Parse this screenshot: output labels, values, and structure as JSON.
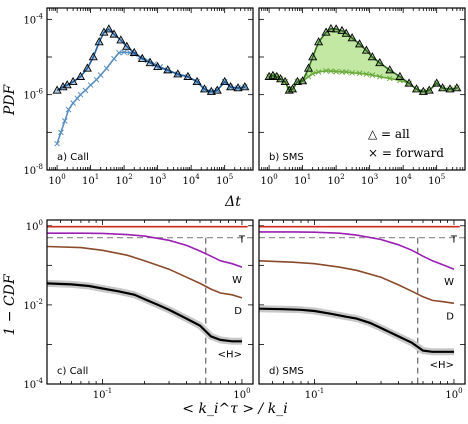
{
  "figure": {
    "top_ylabel": "PDF",
    "top_xlabel": "Δt",
    "bottom_ylabel": "1 − CDF",
    "bottom_xlabel": "< k_i^τ > / k_i",
    "legend": {
      "all": "△ = all",
      "forward": "× = forward"
    }
  },
  "chart_data": [
    {
      "type": "line",
      "panel_label": "a) Call",
      "xscale": "log",
      "yscale": "log",
      "xlim": [
        0.5,
        700000
      ],
      "ylim": [
        1e-08,
        0.0002
      ],
      "xticks": [
        "10^0",
        "10^1",
        "10^2",
        "10^3",
        "10^4",
        "10^5"
      ],
      "yticks": [
        "10^-8",
        "10^-6",
        "10^-4"
      ],
      "colors": {
        "all": "#1f5fa0",
        "forward": "#5a8fc0"
      },
      "series": [
        {
          "name": "all",
          "marker": "triangle",
          "x": [
            1,
            1.5,
            2,
            3,
            5,
            8,
            12,
            18,
            25,
            35,
            50,
            80,
            120,
            200,
            350,
            600,
            1000,
            2000,
            4000,
            8000,
            15000,
            25000,
            40000,
            60000,
            100000,
            150000,
            250000,
            400000
          ],
          "y": [
            1.3e-06,
            1.6e-06,
            1.8e-06,
            2.2e-06,
            3e-06,
            5e-06,
            1e-05,
            2.5e-05,
            4.5e-05,
            5.5e-05,
            4e-05,
            2.8e-05,
            1.9e-05,
            1.3e-05,
            9e-06,
            7e-06,
            5.5e-06,
            4.5e-06,
            3.5e-06,
            3e-06,
            2.2e-06,
            1.4e-06,
            1.2e-06,
            1.3e-06,
            2.2e-06,
            1.6e-06,
            1.5e-06,
            1.6e-06
          ]
        },
        {
          "name": "forward",
          "marker": "x",
          "x": [
            1,
            1.3,
            1.7,
            2.2,
            3,
            4,
            5,
            7,
            10,
            15,
            20,
            30,
            50,
            70,
            100,
            150,
            200,
            300,
            500,
            800,
            1200,
            2000,
            4000,
            8000,
            15000,
            25000,
            40000,
            60000,
            100000,
            150000,
            250000,
            400000
          ],
          "y": [
            5e-08,
            1e-07,
            2e-07,
            4e-07,
            6e-07,
            8e-07,
            1e-06,
            1.3e-06,
            1.8e-06,
            2.5e-06,
            3.3e-06,
            5e-06,
            9e-06,
            1.3e-05,
            1.35e-05,
            1.3e-05,
            1.2e-05,
            1e-05,
            8e-06,
            6.5e-06,
            5.5e-06,
            4.5e-06,
            3.5e-06,
            3e-06,
            2.2e-06,
            1.4e-06,
            1.2e-06,
            1.3e-06,
            2.2e-06,
            1.6e-06,
            1.5e-06,
            1.6e-06
          ]
        }
      ]
    },
    {
      "type": "line",
      "panel_label": "b) SMS",
      "xscale": "log",
      "yscale": "log",
      "xlim": [
        0.5,
        700000
      ],
      "ylim": [
        1e-08,
        0.0002
      ],
      "xticks": [
        "10^0",
        "10^1",
        "10^2",
        "10^3",
        "10^4",
        "10^5"
      ],
      "yticks": [],
      "colors": {
        "all": "#2e6b1e",
        "forward": "#6aaa3a",
        "fill": "#8fd65a"
      },
      "series": [
        {
          "name": "all",
          "marker": "triangle",
          "x": [
            1,
            1.3,
            1.7,
            2.2,
            3,
            4,
            5,
            7,
            10,
            15,
            20,
            30,
            50,
            70,
            100,
            150,
            200,
            300,
            500,
            800,
            1200,
            2000,
            4000,
            8000,
            15000,
            25000,
            40000,
            60000,
            100000,
            150000,
            250000,
            400000
          ],
          "y": [
            3e-06,
            3.2e-06,
            3e-06,
            2.6e-06,
            2.2e-06,
            1.3e-06,
            1.4e-06,
            2.2e-06,
            2.3e-06,
            5e-06,
            1e-05,
            2.5e-05,
            4.5e-05,
            5.6e-05,
            5.5e-05,
            5e-05,
            4.2e-05,
            3.2e-05,
            2.2e-05,
            1.5e-05,
            1e-05,
            7e-06,
            4.5e-06,
            3e-06,
            2e-06,
            1.4e-06,
            1.2e-06,
            1.3e-06,
            2e-06,
            1.5e-06,
            1.4e-06,
            1.5e-06
          ]
        },
        {
          "name": "forward",
          "marker": "x",
          "x": [
            1,
            1.3,
            1.7,
            2.2,
            3,
            4,
            5,
            7,
            10,
            15,
            20,
            30,
            50,
            70,
            100,
            150,
            200,
            300,
            500,
            800,
            1200,
            2000,
            4000,
            8000,
            15000,
            25000,
            40000,
            60000,
            100000,
            150000,
            250000,
            400000
          ],
          "y": [
            3e-06,
            3.2e-06,
            3e-06,
            2.6e-06,
            2.2e-06,
            1.3e-06,
            1.4e-06,
            2.2e-06,
            2.3e-06,
            3e-06,
            3.6e-06,
            4e-06,
            4.3e-06,
            4.2e-06,
            4.1e-06,
            4e-06,
            4e-06,
            3.8e-06,
            3.7e-06,
            3.5e-06,
            3.3e-06,
            3e-06,
            2.7e-06,
            2.4e-06,
            2e-06,
            1.4e-06,
            1.2e-06,
            1.3e-06,
            2e-06,
            1.5e-06,
            1.4e-06,
            1.5e-06
          ]
        }
      ]
    },
    {
      "type": "line",
      "panel_label": "c) Call",
      "xscale": "log",
      "yscale": "log",
      "xlim": [
        0.04,
        1.2
      ],
      "ylim": [
        0.0001,
        1.4
      ],
      "xticks": [
        "10^-1",
        "10^0"
      ],
      "yticks": [
        "10^-4",
        "10^-2",
        "10^0"
      ],
      "hline": 0.5,
      "vline": 0.55,
      "series": [
        {
          "name": "T",
          "color": "#cc2a1d",
          "label": "T",
          "x": [
            0.04,
            1.1
          ],
          "y": [
            0.95,
            0.95
          ]
        },
        {
          "name": "W",
          "color": "#9a1fb3",
          "label": "W",
          "x": [
            0.04,
            0.07,
            0.1,
            0.15,
            0.2,
            0.3,
            0.4,
            0.5,
            0.6,
            0.7,
            0.85,
            1.0
          ],
          "y": [
            0.65,
            0.65,
            0.64,
            0.6,
            0.55,
            0.43,
            0.32,
            0.23,
            0.17,
            0.13,
            0.11,
            0.09
          ]
        },
        {
          "name": "D",
          "color": "#8b4a2a",
          "label": "D",
          "x": [
            0.04,
            0.07,
            0.1,
            0.15,
            0.2,
            0.3,
            0.4,
            0.5,
            0.6,
            0.7,
            0.85,
            1.0
          ],
          "y": [
            0.3,
            0.28,
            0.24,
            0.18,
            0.13,
            0.08,
            0.05,
            0.035,
            0.025,
            0.02,
            0.018,
            0.015
          ]
        },
        {
          "name": "H",
          "color": "#000000",
          "label": "<H>",
          "band": true,
          "x": [
            0.04,
            0.06,
            0.08,
            0.1,
            0.13,
            0.17,
            0.2,
            0.25,
            0.3,
            0.4,
            0.5,
            0.6,
            0.7,
            0.85,
            1.0
          ],
          "y": [
            0.035,
            0.033,
            0.03,
            0.026,
            0.022,
            0.018,
            0.014,
            0.01,
            0.0075,
            0.0045,
            0.003,
            0.0016,
            0.0013,
            0.0012,
            0.0012
          ]
        }
      ]
    },
    {
      "type": "line",
      "panel_label": "d) SMS",
      "xscale": "log",
      "yscale": "log",
      "xlim": [
        0.04,
        1.2
      ],
      "ylim": [
        0.0001,
        1.4
      ],
      "xticks": [
        "10^-1",
        "10^0"
      ],
      "yticks": [],
      "hline": 0.5,
      "vline": 0.55,
      "series": [
        {
          "name": "T",
          "color": "#cc2a1d",
          "label": "T",
          "x": [
            0.04,
            1.1
          ],
          "y": [
            0.95,
            0.95
          ]
        },
        {
          "name": "W",
          "color": "#9a1fb3",
          "label": "W",
          "x": [
            0.04,
            0.07,
            0.1,
            0.15,
            0.2,
            0.3,
            0.4,
            0.5,
            0.6,
            0.7,
            0.85,
            1.0
          ],
          "y": [
            0.7,
            0.7,
            0.69,
            0.65,
            0.58,
            0.45,
            0.33,
            0.24,
            0.17,
            0.13,
            0.1,
            0.08
          ]
        },
        {
          "name": "D",
          "color": "#8b4a2a",
          "label": "D",
          "x": [
            0.04,
            0.07,
            0.1,
            0.15,
            0.2,
            0.3,
            0.4,
            0.5,
            0.6,
            0.7,
            0.85,
            1.0
          ],
          "y": [
            0.13,
            0.12,
            0.11,
            0.09,
            0.075,
            0.05,
            0.032,
            0.022,
            0.016,
            0.013,
            0.012,
            0.011
          ]
        },
        {
          "name": "H",
          "color": "#000000",
          "label": "<H>",
          "band": true,
          "x": [
            0.04,
            0.06,
            0.08,
            0.1,
            0.13,
            0.17,
            0.2,
            0.25,
            0.3,
            0.4,
            0.5,
            0.6,
            0.7,
            0.85,
            1.0
          ],
          "y": [
            0.008,
            0.0078,
            0.0075,
            0.007,
            0.006,
            0.005,
            0.0045,
            0.0035,
            0.0026,
            0.0016,
            0.0011,
            0.0007,
            0.00065,
            0.00065,
            0.00065
          ]
        }
      ]
    }
  ]
}
